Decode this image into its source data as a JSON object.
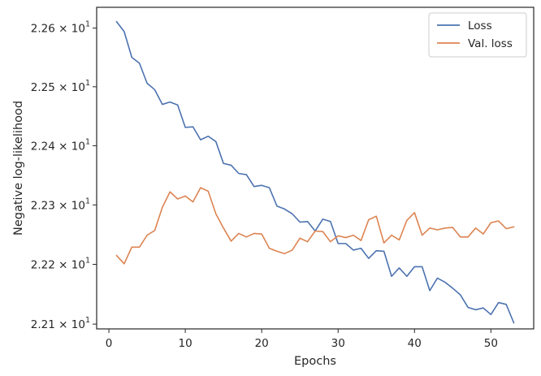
{
  "chart_data": {
    "type": "line",
    "xlabel": "Epochs",
    "ylabel": "Negative log-likelihood",
    "xlim": [
      -1.6,
      55.6
    ],
    "ylim": [
      22.092,
      22.6355
    ],
    "yscale": "log",
    "xticks": [
      0,
      10,
      20,
      30,
      40,
      50
    ],
    "yticks": [
      {
        "value": 22.1,
        "mantissa": "2.21",
        "times": "×",
        "base": "10",
        "exp": "1"
      },
      {
        "value": 22.2,
        "mantissa": "2.22",
        "times": "×",
        "base": "10",
        "exp": "1"
      },
      {
        "value": 22.3,
        "mantissa": "2.23",
        "times": "×",
        "base": "10",
        "exp": "1"
      },
      {
        "value": 22.4,
        "mantissa": "2.24",
        "times": "×",
        "base": "10",
        "exp": "1"
      },
      {
        "value": 22.5,
        "mantissa": "2.25",
        "times": "×",
        "base": "10",
        "exp": "1"
      },
      {
        "value": 22.6,
        "mantissa": "2.26",
        "times": "×",
        "base": "10",
        "exp": "1"
      }
    ],
    "grid": false,
    "legend": "top-right",
    "series": [
      {
        "name": "Loss",
        "color": "#4c72b0",
        "x": [
          1,
          2,
          3,
          4,
          5,
          6,
          7,
          8,
          9,
          10,
          11,
          12,
          13,
          14,
          15,
          16,
          17,
          18,
          19,
          20,
          21,
          22,
          23,
          24,
          25,
          26,
          27,
          28,
          29,
          30,
          31,
          32,
          33,
          34,
          35,
          36,
          37,
          38,
          39,
          40,
          41,
          42,
          43,
          44,
          45,
          46,
          47,
          48,
          49,
          50,
          51,
          52,
          53
        ],
        "values": [
          22.611,
          22.594,
          22.55,
          22.54,
          22.506,
          22.495,
          22.47,
          22.474,
          22.469,
          22.431,
          22.432,
          22.41,
          22.416,
          22.407,
          22.37,
          22.367,
          22.353,
          22.351,
          22.331,
          22.333,
          22.329,
          22.298,
          22.293,
          22.285,
          22.271,
          22.272,
          22.256,
          22.276,
          22.272,
          22.235,
          22.235,
          22.224,
          22.227,
          22.21,
          22.223,
          22.222,
          22.18,
          22.194,
          22.18,
          22.196,
          22.196,
          22.156,
          22.177,
          22.17,
          22.16,
          22.149,
          22.128,
          22.124,
          22.127,
          22.116,
          22.136,
          22.133,
          22.102
        ]
      },
      {
        "name": "Val. loss",
        "color": "#dd8452",
        "x": [
          1,
          2,
          3,
          4,
          5,
          6,
          7,
          8,
          9,
          10,
          11,
          12,
          13,
          14,
          15,
          16,
          17,
          18,
          19,
          20,
          21,
          22,
          23,
          24,
          25,
          26,
          27,
          28,
          29,
          30,
          31,
          32,
          33,
          34,
          35,
          36,
          37,
          38,
          39,
          40,
          41,
          42,
          43,
          44,
          45,
          46,
          47,
          48,
          49,
          50,
          51,
          52,
          53
        ],
        "values": [
          22.215,
          22.201,
          22.229,
          22.229,
          22.249,
          22.257,
          22.296,
          22.322,
          22.31,
          22.315,
          22.305,
          22.329,
          22.323,
          22.285,
          22.261,
          22.239,
          22.252,
          22.246,
          22.252,
          22.251,
          22.227,
          22.222,
          22.218,
          22.224,
          22.244,
          22.238,
          22.256,
          22.255,
          22.238,
          22.248,
          22.245,
          22.249,
          22.24,
          22.275,
          22.281,
          22.236,
          22.249,
          22.241,
          22.274,
          22.287,
          22.249,
          22.261,
          22.258,
          22.261,
          22.262,
          22.246,
          22.246,
          22.261,
          22.251,
          22.27,
          22.273,
          22.26,
          22.263
        ]
      }
    ]
  }
}
